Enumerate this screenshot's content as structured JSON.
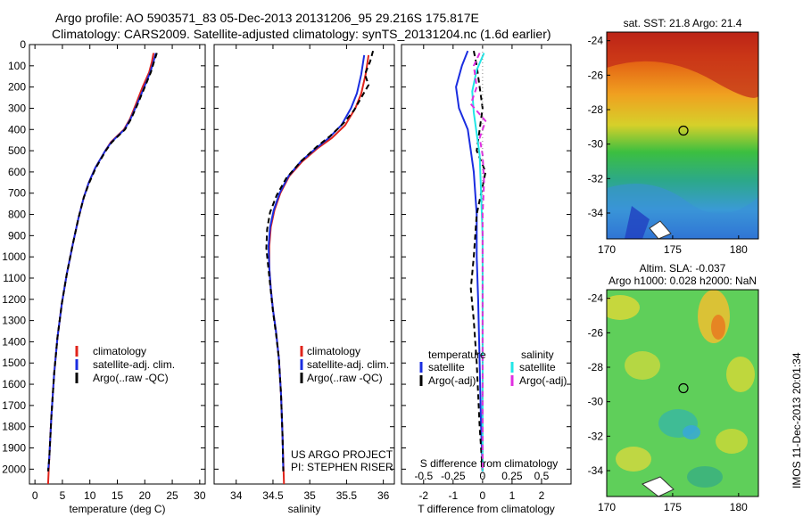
{
  "header": {
    "line1": "Argo profile: AO 5903571_83 05-Dec-2013 20131206_95 29.216S 175.817E",
    "line2": "Climatology: CARS2009. Satellite-adjusted climatology: synTS_20131204.nc (1.6d earlier)"
  },
  "side_label": "IMOS 11-Dec-2013 20:01:34",
  "colors": {
    "climatology": "#e0241b",
    "satellite": "#1a2de0",
    "argo": "#000000",
    "salinity_satellite": "#22e6e6",
    "salinity_argo": "#e02ee0"
  },
  "chart_data": [
    {
      "type": "line",
      "name": "temperature-profile",
      "xlabel": "temperature (deg C)",
      "xlim": [
        -1,
        31
      ],
      "xticks": [
        0,
        5,
        10,
        15,
        20,
        25,
        30
      ],
      "ylim": [
        0,
        2070
      ],
      "yticks": [
        0,
        100,
        200,
        300,
        400,
        500,
        600,
        700,
        800,
        900,
        1000,
        1100,
        1200,
        1300,
        1400,
        1500,
        1600,
        1700,
        1800,
        1900,
        2000
      ],
      "y_reversed": true,
      "legend": [
        "climatology",
        "satellite-adj. clim.",
        "Argo(..raw -QC)"
      ],
      "series": [
        {
          "name": "climatology",
          "color": "#e0241b",
          "points": [
            [
              21.6,
              40
            ],
            [
              21.3,
              80
            ],
            [
              20.8,
              130
            ],
            [
              19.6,
              200
            ],
            [
              18.4,
              280
            ],
            [
              17.3,
              350
            ],
            [
              16.2,
              400
            ],
            [
              15.0,
              430
            ],
            [
              13.8,
              460
            ],
            [
              12.8,
              500
            ],
            [
              11.0,
              580
            ],
            [
              9.8,
              650
            ],
            [
              8.9,
              720
            ],
            [
              7.9,
              820
            ],
            [
              6.9,
              940
            ],
            [
              5.8,
              1080
            ],
            [
              4.9,
              1220
            ],
            [
              4.1,
              1380
            ],
            [
              3.5,
              1550
            ],
            [
              3.0,
              1750
            ],
            [
              2.6,
              1950
            ],
            [
              2.4,
              2070
            ]
          ]
        },
        {
          "name": "satellite-adj. clim.",
          "color": "#1a2de0",
          "points": [
            [
              22.0,
              40
            ],
            [
              21.6,
              80
            ],
            [
              21.0,
              130
            ],
            [
              19.9,
              200
            ],
            [
              18.6,
              280
            ],
            [
              17.4,
              350
            ],
            [
              16.3,
              400
            ],
            [
              15.1,
              430
            ],
            [
              13.9,
              460
            ],
            [
              12.8,
              500
            ],
            [
              11.0,
              580
            ],
            [
              9.8,
              650
            ],
            [
              8.9,
              720
            ],
            [
              7.9,
              820
            ],
            [
              6.9,
              940
            ],
            [
              5.8,
              1080
            ],
            [
              4.9,
              1220
            ],
            [
              4.1,
              1380
            ],
            [
              3.5,
              1550
            ],
            [
              3.0,
              1750
            ],
            [
              2.6,
              1950
            ],
            [
              2.4,
              2010
            ]
          ]
        },
        {
          "name": "Argo(..raw -QC)",
          "color": "#000000",
          "points": [
            [
              22.2,
              40
            ],
            [
              21.7,
              80
            ],
            [
              21.1,
              130
            ],
            [
              20.0,
              200
            ],
            [
              18.7,
              280
            ],
            [
              17.5,
              350
            ],
            [
              16.4,
              400
            ],
            [
              15.2,
              430
            ],
            [
              14.0,
              460
            ],
            [
              12.9,
              500
            ],
            [
              11.1,
              580
            ],
            [
              9.9,
              650
            ],
            [
              8.9,
              720
            ],
            [
              7.9,
              820
            ],
            [
              6.9,
              940
            ],
            [
              5.8,
              1080
            ],
            [
              4.9,
              1220
            ],
            [
              4.1,
              1380
            ],
            [
              3.5,
              1550
            ],
            [
              3.0,
              1750
            ],
            [
              2.6,
              1950
            ],
            [
              2.4,
              2010
            ]
          ]
        }
      ]
    },
    {
      "type": "line",
      "name": "salinity-profile",
      "xlabel": "salinity",
      "xlim": [
        33.7,
        36.15
      ],
      "xticks": [
        34,
        34.5,
        35,
        35.5,
        36
      ],
      "ylim": [
        0,
        2070
      ],
      "y_reversed": true,
      "legend": [
        "climatology",
        "satellite-adj. clim.",
        "Argo(..raw -QC)"
      ],
      "annotation": [
        "US ARGO PROJECT",
        "PI: STEPHEN RISER"
      ],
      "series": [
        {
          "name": "climatology",
          "color": "#e0241b",
          "points": [
            [
              35.8,
              50
            ],
            [
              35.76,
              140
            ],
            [
              35.7,
              230
            ],
            [
              35.62,
              300
            ],
            [
              35.48,
              380
            ],
            [
              35.3,
              440
            ],
            [
              35.1,
              490
            ],
            [
              34.9,
              550
            ],
            [
              34.72,
              620
            ],
            [
              34.6,
              700
            ],
            [
              34.52,
              780
            ],
            [
              34.47,
              860
            ],
            [
              34.45,
              950
            ],
            [
              34.45,
              1050
            ],
            [
              34.47,
              1150
            ],
            [
              34.5,
              1250
            ],
            [
              34.54,
              1350
            ],
            [
              34.58,
              1480
            ],
            [
              34.61,
              1650
            ],
            [
              34.63,
              1850
            ],
            [
              34.65,
              2070
            ]
          ]
        },
        {
          "name": "satellite-adj. clim.",
          "color": "#1a2de0",
          "points": [
            [
              35.74,
              50
            ],
            [
              35.7,
              140
            ],
            [
              35.64,
              230
            ],
            [
              35.56,
              300
            ],
            [
              35.43,
              380
            ],
            [
              35.26,
              440
            ],
            [
              35.08,
              490
            ],
            [
              34.88,
              550
            ],
            [
              34.71,
              620
            ],
            [
              34.59,
              700
            ],
            [
              34.51,
              780
            ],
            [
              34.46,
              860
            ],
            [
              34.44,
              950
            ],
            [
              34.45,
              1050
            ],
            [
              34.47,
              1150
            ],
            [
              34.5,
              1250
            ],
            [
              34.54,
              1350
            ],
            [
              34.58,
              1480
            ],
            [
              34.61,
              1650
            ],
            [
              34.63,
              1850
            ],
            [
              34.64,
              2010
            ]
          ]
        },
        {
          "name": "Argo(..raw -QC)",
          "color": "#000000",
          "points": [
            [
              35.86,
              30
            ],
            [
              35.82,
              80
            ],
            [
              35.75,
              140
            ],
            [
              35.8,
              190
            ],
            [
              35.7,
              250
            ],
            [
              35.6,
              310
            ],
            [
              35.46,
              370
            ],
            [
              35.28,
              430
            ],
            [
              35.1,
              480
            ],
            [
              34.88,
              550
            ],
            [
              34.68,
              630
            ],
            [
              34.55,
              710
            ],
            [
              34.46,
              790
            ],
            [
              34.42,
              870
            ],
            [
              34.41,
              960
            ],
            [
              34.44,
              1060
            ],
            [
              34.47,
              1160
            ],
            [
              34.5,
              1260
            ],
            [
              34.54,
              1360
            ],
            [
              34.58,
              1480
            ],
            [
              34.61,
              1650
            ],
            [
              34.63,
              1850
            ],
            [
              34.64,
              2010
            ]
          ]
        }
      ]
    },
    {
      "type": "line",
      "name": "difference-profile",
      "xlabel": "T difference from climatology",
      "xlabel_top": "S difference from climatology",
      "xlim": [
        -2.75,
        3.0
      ],
      "xticks": [
        -2,
        -1,
        0,
        1,
        2
      ],
      "s_ticks": [
        "-0.5",
        "-0.25",
        "0",
        "0.25",
        "0.5"
      ],
      "ylim": [
        0,
        2070
      ],
      "y_reversed": true,
      "legend_left_title": "temperature",
      "legend_right_title": "salinity",
      "legend": [
        "satellite",
        "Argo(-adj)",
        "satellite",
        "Argo(-adj)"
      ],
      "series": [
        {
          "name": "T satellite",
          "color": "#1a2de0",
          "points": [
            [
              -0.5,
              30
            ],
            [
              -0.7,
              100
            ],
            [
              -0.9,
              200
            ],
            [
              -0.8,
              300
            ],
            [
              -0.5,
              400
            ],
            [
              -0.4,
              500
            ],
            [
              -0.3,
              600
            ],
            [
              -0.2,
              800
            ],
            [
              -0.2,
              1000
            ],
            [
              -0.15,
              1200
            ],
            [
              -0.1,
              1500
            ],
            [
              -0.05,
              1800
            ],
            [
              0,
              2010
            ]
          ]
        },
        {
          "name": "T Argo(-adj)",
          "color": "#000000",
          "points": [
            [
              -0.3,
              30
            ],
            [
              -0.2,
              100
            ],
            [
              -0.1,
              200
            ],
            [
              0,
              300
            ],
            [
              -0.1,
              400
            ],
            [
              -0.2,
              500
            ],
            [
              0.1,
              600
            ],
            [
              -0.2,
              800
            ],
            [
              -0.3,
              1000
            ],
            [
              -0.4,
              1150
            ],
            [
              -0.3,
              1300
            ],
            [
              -0.2,
              1500
            ],
            [
              -0.1,
              1800
            ],
            [
              0,
              2010
            ]
          ]
        },
        {
          "name": "S satellite",
          "color": "#22e6e6",
          "points": [
            [
              0.05,
              40
            ],
            [
              -0.2,
              120
            ],
            [
              -0.35,
              220
            ],
            [
              -0.3,
              320
            ],
            [
              -0.2,
              420
            ],
            [
              -0.1,
              520
            ],
            [
              -0.05,
              700
            ],
            [
              0,
              900
            ],
            [
              0,
              1200
            ],
            [
              0,
              1600
            ],
            [
              0,
              2010
            ]
          ]
        },
        {
          "name": "S Argo(-adj)",
          "color": "#e02ee0",
          "points": [
            [
              -0.1,
              40
            ],
            [
              -0.3,
              100
            ],
            [
              -0.2,
              200
            ],
            [
              -0.4,
              280
            ],
            [
              0.1,
              360
            ],
            [
              -0.1,
              440
            ],
            [
              0,
              520
            ],
            [
              0.05,
              650
            ],
            [
              0,
              800
            ],
            [
              0,
              1000
            ],
            [
              0,
              1300
            ],
            [
              0,
              1700
            ],
            [
              0,
              2010
            ]
          ]
        }
      ]
    },
    {
      "type": "heatmap",
      "name": "sst-map",
      "title": "sat. SST: 21.8 Argo: 21.4",
      "xlim": [
        170,
        181.5
      ],
      "ylim": [
        -35.5,
        -23.5
      ],
      "xticks": [
        170,
        175,
        180
      ],
      "yticks": [
        -24,
        -26,
        -28,
        -30,
        -32,
        -34
      ],
      "argo_position": [
        175.817,
        -29.216
      ]
    },
    {
      "type": "heatmap",
      "name": "sla-map",
      "title": "Altim. SLA: -0.037",
      "subtitle": "Argo h1000: 0.028 h2000: NaN",
      "xlim": [
        170,
        181.5
      ],
      "ylim": [
        -35.5,
        -23.5
      ],
      "xticks": [
        170,
        175,
        180
      ],
      "yticks": [
        -24,
        -26,
        -28,
        -30,
        -32,
        -34
      ],
      "argo_position": [
        175.817,
        -29.216
      ]
    }
  ]
}
